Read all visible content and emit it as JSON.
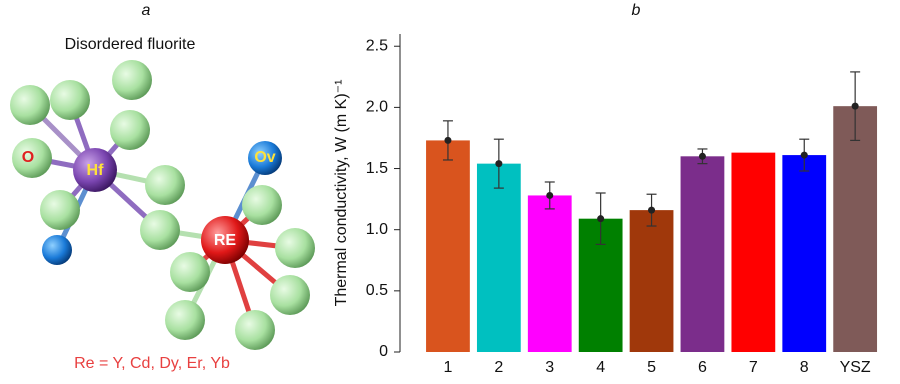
{
  "panel_a": {
    "label": "a",
    "title": "Disordered fluorite",
    "atoms": {
      "o": "O",
      "hf": "Hf",
      "ov": "Ov",
      "re": "RE"
    },
    "caption": "Re = Y, Cd, Dy, Er, Yb"
  },
  "chart_data": {
    "type": "bar",
    "title": "b",
    "y_label": "Thermal conductivity, W (m K)⁻¹",
    "categories": [
      "1",
      "2",
      "3",
      "4",
      "5",
      "6",
      "7",
      "8",
      "YSZ"
    ],
    "values": [
      1.73,
      1.54,
      1.28,
      1.09,
      1.16,
      1.6,
      1.63,
      1.61,
      2.01
    ],
    "errors": [
      0.16,
      0.2,
      0.11,
      0.21,
      0.13,
      0.06,
      null,
      0.13,
      0.28
    ],
    "colors": [
      "#d9541e",
      "#00c0c0",
      "#ff00ff",
      "#008000",
      "#a0380b",
      "#7b2d8b",
      "#ff0000",
      "#0000ff",
      "#7f5a58"
    ],
    "ylim": [
      0,
      2.6
    ],
    "yticks": [
      0,
      0.5,
      {
        "value": 1,
        "label": "1.0"
      },
      1.5,
      {
        "value": 2,
        "label": "2.0"
      },
      2.5
    ],
    "grid": false
  }
}
